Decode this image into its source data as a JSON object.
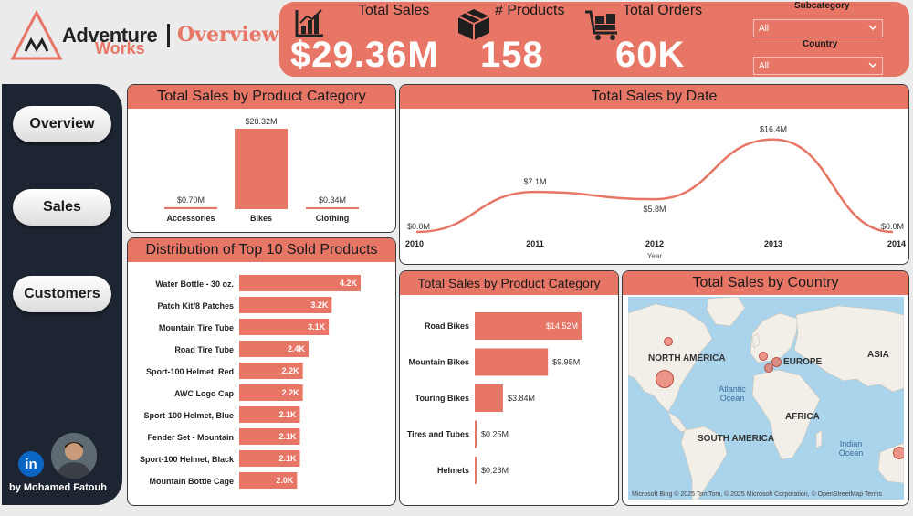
{
  "brand": {
    "line1": "Adventure",
    "line2": "Works",
    "page_title": "Overview"
  },
  "kpis": [
    {
      "label": "Total Sales",
      "value": "$29.36M",
      "icon": "bar-chart-icon"
    },
    {
      "label": "# Products",
      "value": "158",
      "icon": "box-icon"
    },
    {
      "label": "Total Orders",
      "value": "60K",
      "icon": "cart-icon"
    }
  ],
  "filters": [
    {
      "label": "Subcategory",
      "value": "All"
    },
    {
      "label": "Country",
      "value": "All"
    }
  ],
  "nav": [
    "Overview",
    "Sales",
    "Customers"
  ],
  "author": {
    "linkedin": "in",
    "name": "by Mohamed Fatouh"
  },
  "colors": {
    "accent": "#e87666",
    "sidebar": "#1e2532",
    "bar": "#e87666"
  },
  "panels": {
    "category": "Total Sales by Product Category",
    "date": "Total Sales by Date",
    "top10": "Distribution of Top 10 Sold Products",
    "subcategory": "Total Sales by Product Category",
    "country": "Total Sales by Country"
  },
  "chart_data": [
    {
      "id": "category",
      "type": "bar",
      "title": "Total Sales by Product Category",
      "categories": [
        "Accessories",
        "Bikes",
        "Clothing"
      ],
      "values": [
        0.7,
        28.32,
        0.34
      ],
      "labels": [
        "$0.70M",
        "$28.32M",
        "$0.34M"
      ],
      "unit": "$M"
    },
    {
      "id": "date",
      "type": "line",
      "title": "Total Sales by Date",
      "x": [
        "2010",
        "2011",
        "2012",
        "2013",
        "2014"
      ],
      "values": [
        0.0,
        7.1,
        5.8,
        16.4,
        0.0
      ],
      "labels": [
        "$0.0M",
        "$7.1M",
        "$5.8M",
        "$16.4M",
        "$0.0M"
      ],
      "xlabel": "Year",
      "ylim": [
        0,
        17
      ]
    },
    {
      "id": "top10",
      "type": "bar",
      "orientation": "horizontal",
      "title": "Distribution of Top 10 Sold Products",
      "categories": [
        "Water Bottle - 30 oz.",
        "Patch Kit/8 Patches",
        "Mountain Tire Tube",
        "Road Tire Tube",
        "Sport-100 Helmet, Red",
        "AWC Logo Cap",
        "Sport-100 Helmet, Blue",
        "Fender Set - Mountain",
        "Sport-100 Helmet, Black",
        "Mountain Bottle Cage"
      ],
      "values": [
        4.2,
        3.2,
        3.1,
        2.4,
        2.2,
        2.2,
        2.1,
        2.1,
        2.1,
        2.0
      ],
      "labels": [
        "4.2K",
        "3.2K",
        "3.1K",
        "2.4K",
        "2.2K",
        "2.2K",
        "2.1K",
        "2.1K",
        "2.1K",
        "2.0K"
      ],
      "unit": "K"
    },
    {
      "id": "subcategory",
      "type": "bar",
      "orientation": "horizontal",
      "title": "Total Sales by Product Category",
      "categories": [
        "Road Bikes",
        "Mountain Bikes",
        "Touring Bikes",
        "Tires and Tubes",
        "Helmets"
      ],
      "values": [
        14.52,
        9.95,
        3.84,
        0.25,
        0.23
      ],
      "labels": [
        "$14.52M",
        "$9.95M",
        "$3.84M",
        "$0.25M",
        "$0.23M"
      ],
      "unit": "$M"
    }
  ],
  "map": {
    "labels": [
      "NORTH AMERICA",
      "EUROPE",
      "ASIA",
      "AFRICA",
      "SOUTH AMERICA"
    ],
    "oceans": [
      "Atlantic Ocean",
      "Indian Ocean"
    ],
    "credits": "© 2025 TomTom, © 2025 Microsoft Corporation, © OpenStreetMap  Terms",
    "provider": "Microsoft Bing"
  }
}
